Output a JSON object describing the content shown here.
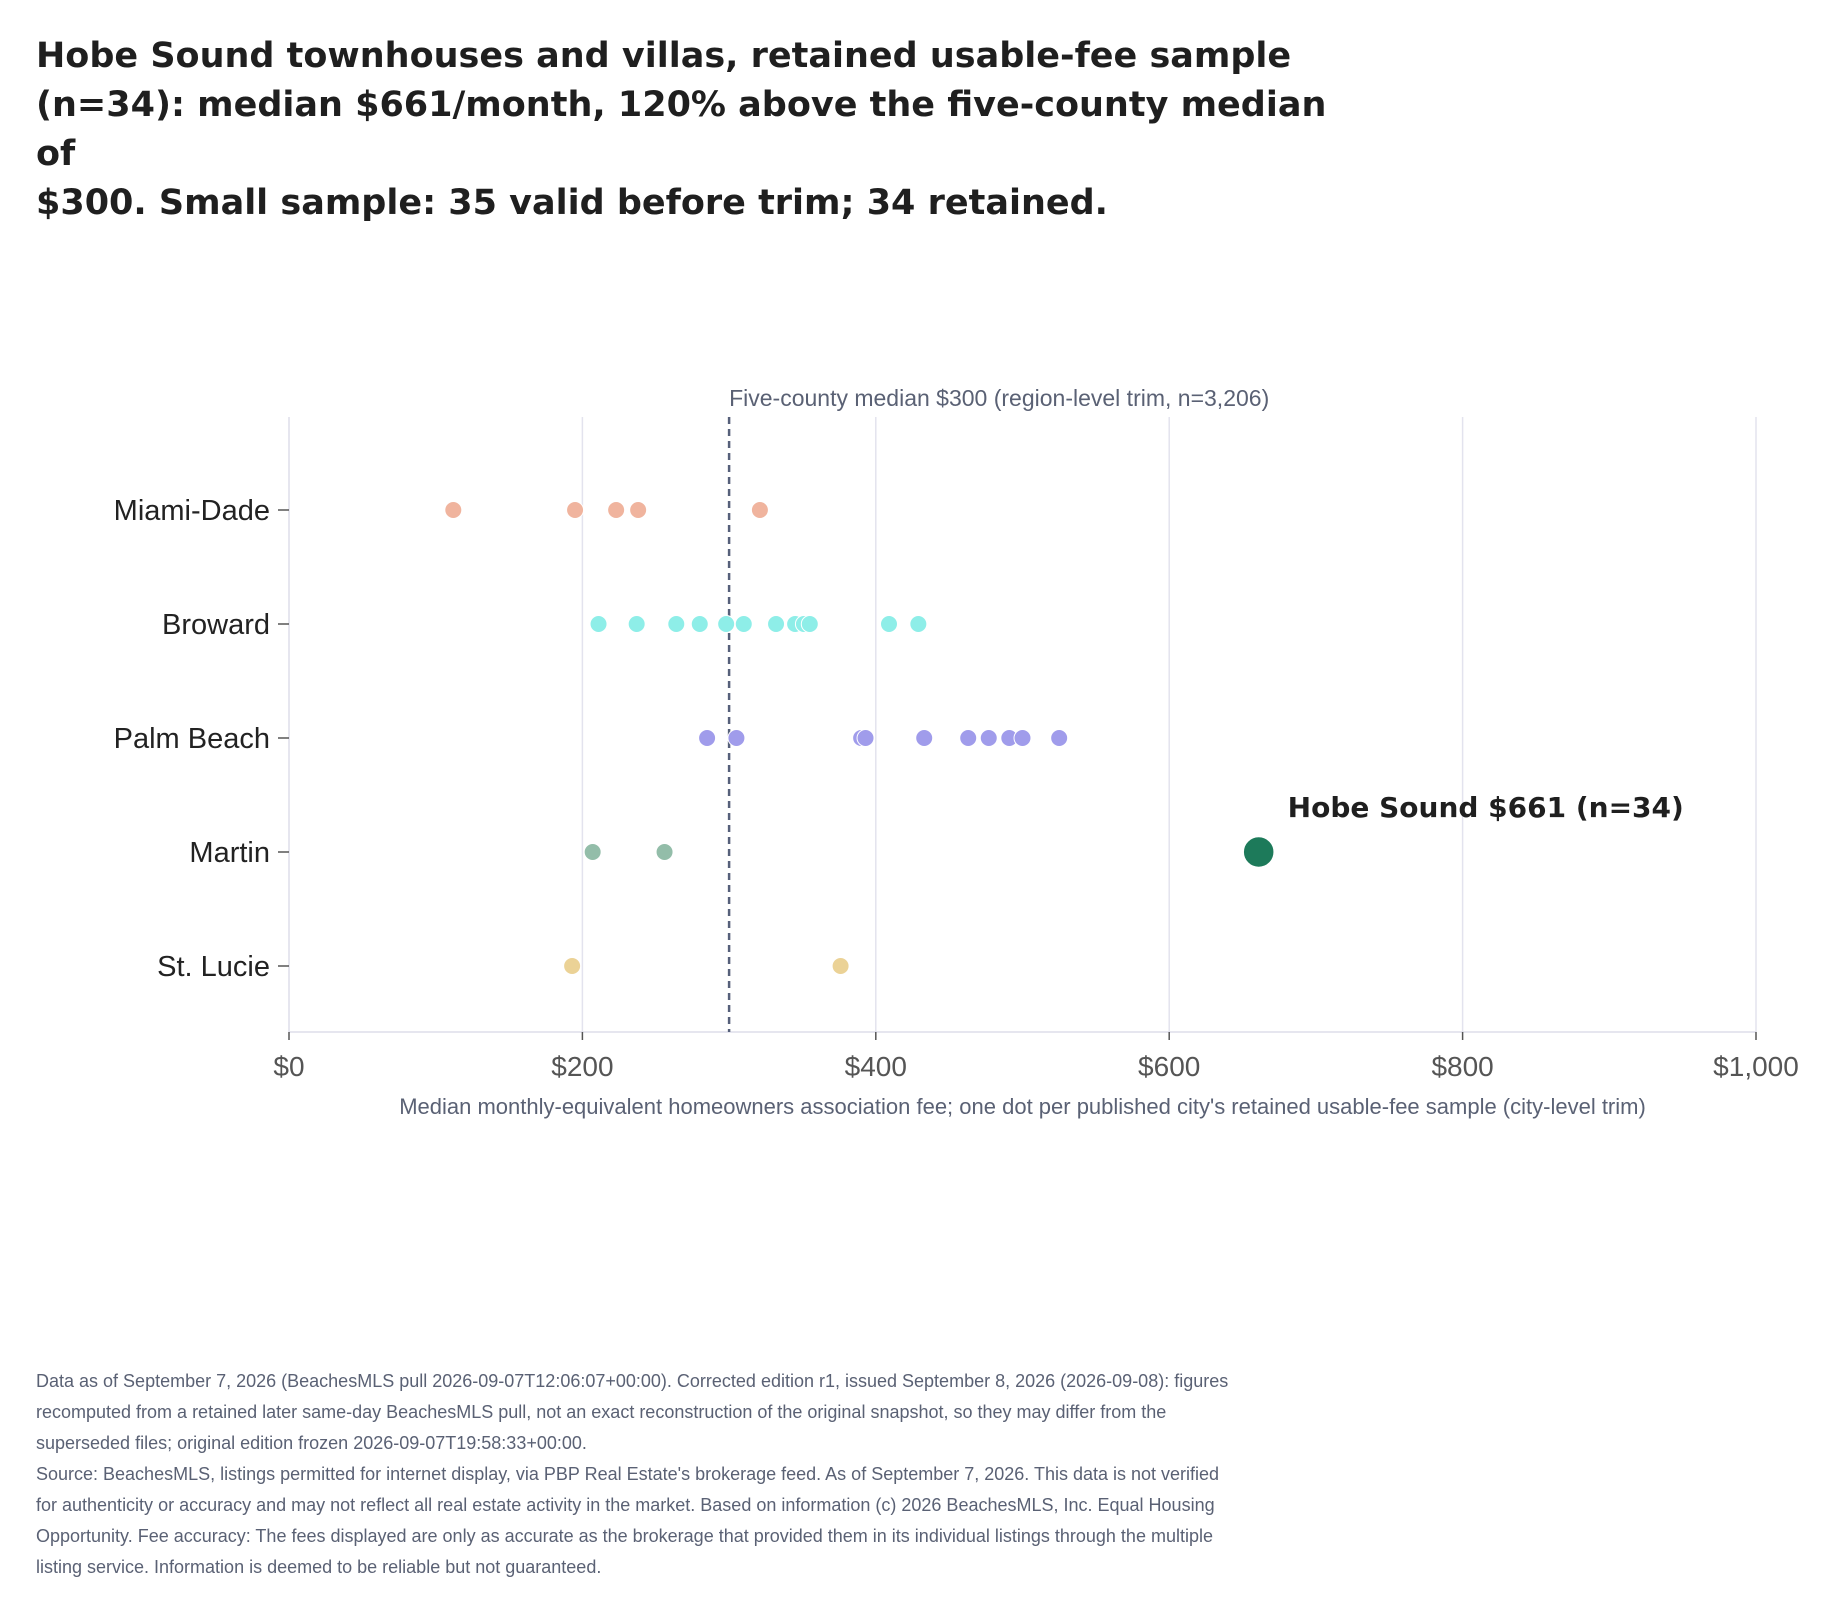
{
  "title_lines": [
    "Hobe Sound townhouses and villas, retained usable-fee sample",
    "(n=34): median $661/month, 120% above the five-county median of",
    "$300. Small sample: 35 valid before trim; 34 retained."
  ],
  "footnote_lines": [
    "Data as of September 7, 2026 (BeachesMLS pull 2026-09-07T12:06:07+00:00). Corrected edition r1, issued September 8, 2026 (2026-09-08): figures",
    "recomputed from a retained later same-day BeachesMLS pull, not an exact reconstruction of the original snapshot, so they may differ from the",
    "superseded files; original edition frozen 2026-09-07T19:58:33+00:00.",
    "Source: BeachesMLS, listings permitted for internet display, via PBP Real Estate's brokerage feed. As of September 7, 2026. This data is not verified",
    "for authenticity or accuracy and may not reflect all real estate activity in the market. Based on information (c) 2026 BeachesMLS, Inc. Equal Housing",
    "Opportunity. Fee accuracy: The fees displayed are only as accurate as the brokerage that provided them in its individual listings through the multiple",
    "listing service. Information is deemed to be reliable but not guaranteed."
  ],
  "chart_data": {
    "type": "scatter",
    "xlabel": "Median monthly-equivalent homeowners association fee; one dot per published city's retained usable-fee sample (city-level trim)",
    "ylabel": "",
    "xlim": [
      0,
      1000
    ],
    "x_ticks": [
      0,
      200,
      400,
      600,
      800,
      1000
    ],
    "x_tick_labels": [
      "$0",
      "$200",
      "$400",
      "$600",
      "$800",
      "$1,000"
    ],
    "grid": true,
    "categories": [
      "Miami-Dade",
      "Broward",
      "Palm Beach",
      "Martin",
      "St. Lucie"
    ],
    "series": [
      {
        "name": "Miami-Dade",
        "color": "#f0b49e",
        "values": [
          112,
          195,
          223,
          238,
          321
        ]
      },
      {
        "name": "Broward",
        "color": "#8eeee8",
        "values": [
          211,
          237,
          264,
          280,
          298,
          310,
          332,
          345,
          351,
          355,
          409,
          429
        ]
      },
      {
        "name": "Palm Beach",
        "color": "#a09ceb",
        "values": [
          285,
          305,
          390,
          393,
          433,
          463,
          477,
          491,
          500,
          525
        ]
      },
      {
        "name": "Martin",
        "color": "#93bda9",
        "values": [
          207,
          256
        ]
      },
      {
        "name": "St. Lucie",
        "color": "#ebd296",
        "values": [
          193,
          376
        ]
      }
    ],
    "reference_line": {
      "value": 300,
      "label": "Five-county median $300 (region-level trim, n=3,206)",
      "color": "#56607a"
    },
    "highlight": {
      "category": "Martin",
      "value": 661,
      "label": "Hobe Sound $661 (n=34)",
      "color": "#1d7a5a"
    }
  }
}
